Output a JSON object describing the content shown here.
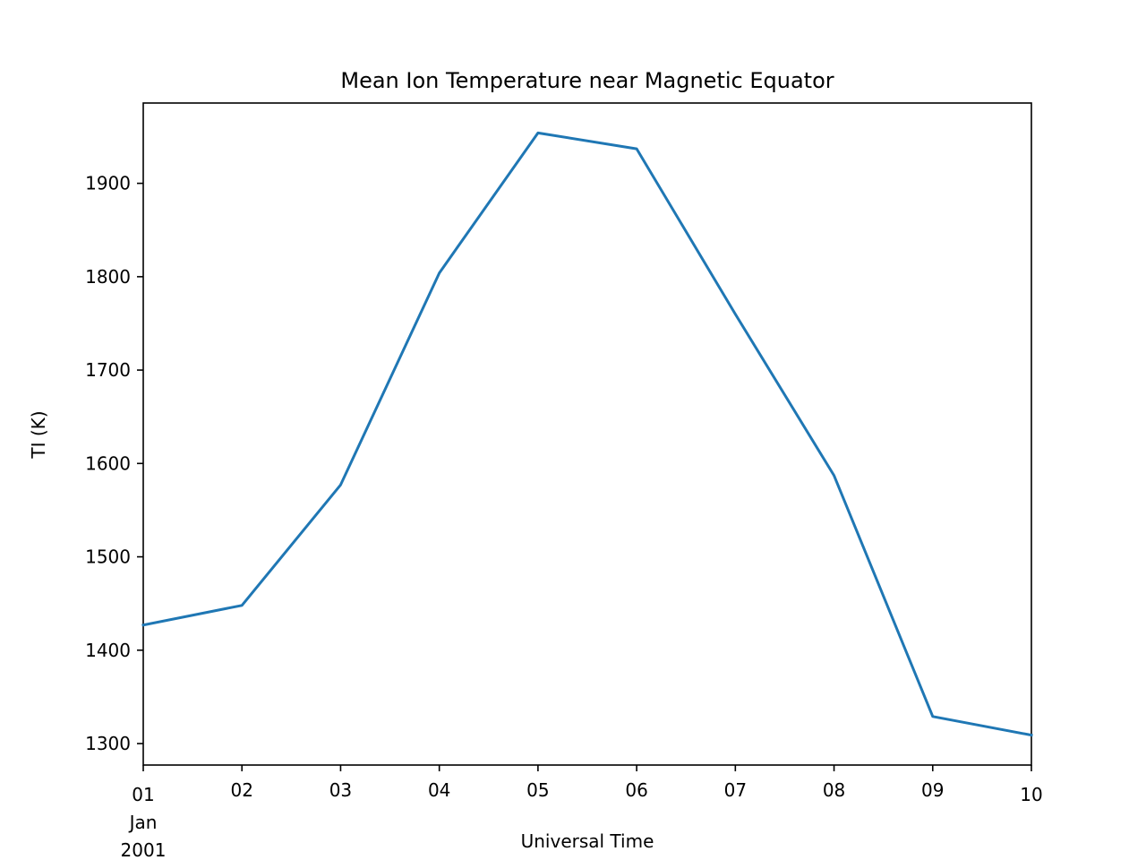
{
  "chart_data": {
    "type": "line",
    "title": "Mean Ion Temperature near Magnetic Equator",
    "xlabel": "Universal Time",
    "ylabel": "TI (K)",
    "x_type": "date",
    "x": [
      "2001-01-01",
      "2001-01-02",
      "2001-01-03",
      "2001-01-04",
      "2001-01-05",
      "2001-01-06",
      "2001-01-07",
      "2001-01-08",
      "2001-01-09",
      "2001-01-10"
    ],
    "x_tick_labels": [
      "01",
      "02",
      "03",
      "04",
      "05",
      "06",
      "07",
      "08",
      "09",
      "10"
    ],
    "x_tick_sublabels": [
      "Jan",
      "2001"
    ],
    "series": [
      {
        "values": [
          1427,
          1448,
          1577,
          1804,
          1954,
          1937,
          1760,
          1587,
          1329,
          1309
        ]
      }
    ],
    "ylim": [
      1277,
      1986
    ],
    "y_ticks": [
      1300,
      1400,
      1500,
      1600,
      1700,
      1800,
      1900
    ],
    "grid": false,
    "legend": "none",
    "line_color": "#1f77b4"
  }
}
